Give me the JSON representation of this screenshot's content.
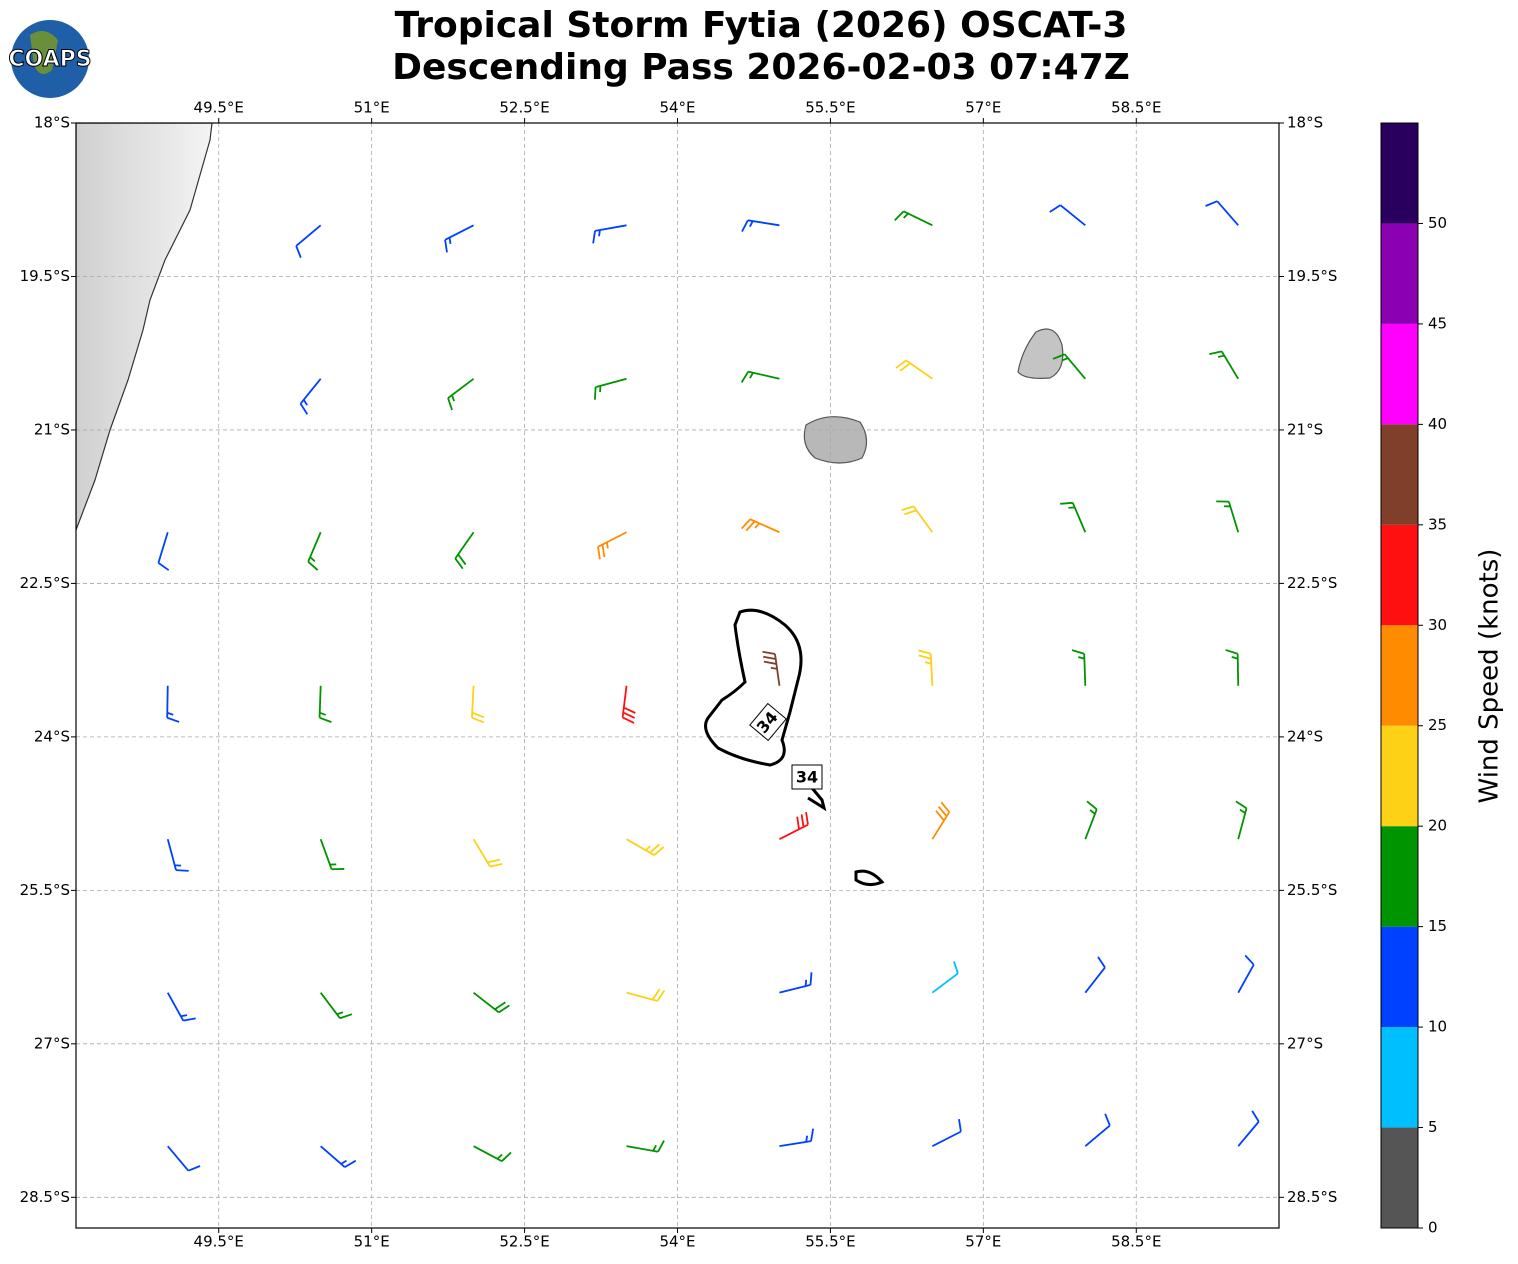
{
  "chart_data": {
    "type": "barb",
    "logo": "COAPS",
    "title": "Tropical Storm Fytia (2026) OSCAT-3",
    "subtitle": "Descending Pass 2026-02-03 07:47Z",
    "xlim": [
      48.1,
      59.9
    ],
    "ylim": [
      -28.8,
      -18
    ],
    "xticks": [
      {
        "value": 49.5,
        "label": "49.5°E"
      },
      {
        "value": 51,
        "label": "51°E"
      },
      {
        "value": 52.5,
        "label": "52.5°E"
      },
      {
        "value": 54,
        "label": "54°E"
      },
      {
        "value": 55.5,
        "label": "55.5°E"
      },
      {
        "value": 57,
        "label": "57°E"
      },
      {
        "value": 58.5,
        "label": "58.5°E"
      }
    ],
    "yticks": [
      {
        "value": -18,
        "label": "18°S"
      },
      {
        "value": -19.5,
        "label": "19.5°S"
      },
      {
        "value": -21,
        "label": "21°S"
      },
      {
        "value": -22.5,
        "label": "22.5°S"
      },
      {
        "value": -24,
        "label": "24°S"
      },
      {
        "value": -25.5,
        "label": "25.5°S"
      },
      {
        "value": -27,
        "label": "27°S"
      },
      {
        "value": -28.5,
        "label": "28.5°S"
      }
    ],
    "grid": true,
    "annotations": [
      "34",
      "34"
    ],
    "barbs": {
      "lon": [
        49,
        50.5,
        52,
        53.5,
        55,
        56.5,
        58,
        59.5
      ],
      "lat": [
        -19,
        -20.5,
        -22,
        -23.5,
        -25,
        -26.5,
        -28
      ],
      "speed": [
        [
          null,
          12,
          13,
          13,
          13,
          16,
          12,
          12
        ],
        [
          null,
          13,
          16,
          17,
          17,
          21,
          17,
          16
        ],
        [
          12,
          16,
          18,
          26,
          27,
          22,
          17,
          16
        ],
        [
          13,
          17,
          22,
          32,
          36,
          23,
          17,
          16
        ],
        [
          13,
          16,
          22,
          24,
          31,
          28,
          16,
          16
        ],
        [
          13,
          16,
          18,
          22,
          14,
          9,
          12,
          12
        ],
        [
          12,
          14,
          17,
          16,
          13,
          12,
          12,
          11
        ]
      ],
      "direction": [
        [
          null,
          230,
          243,
          260,
          279,
          296,
          309,
          319
        ],
        [
          null,
          219,
          233,
          255,
          283,
          305,
          320,
          329
        ],
        [
          197,
          203,
          215,
          243,
          294,
          324,
          337,
          343
        ],
        [
          181,
          182,
          183,
          187,
          352,
          357,
          358,
          359
        ],
        [
          165,
          160,
          149,
          120,
          63,
          32,
          21,
          15
        ],
        [
          151,
          143,
          128,
          105,
          76,
          53,
          38,
          29
        ],
        [
          140,
          131,
          118,
          100,
          81,
          63,
          50,
          40
        ]
      ]
    },
    "colorbar": {
      "label": "Wind Speed (knots)",
      "clim": [
        0,
        55
      ],
      "ticks": [
        0,
        5,
        10,
        15,
        20,
        25,
        30,
        35,
        40,
        45,
        50
      ],
      "colors": [
        "#555555",
        "#00bfff",
        "#0040ff",
        "#009400",
        "#fcd116",
        "#ff8c00",
        "#ff1010",
        "#7f3f2a",
        "#ff00ff",
        "#8b00b3",
        "#2a005e"
      ]
    }
  }
}
